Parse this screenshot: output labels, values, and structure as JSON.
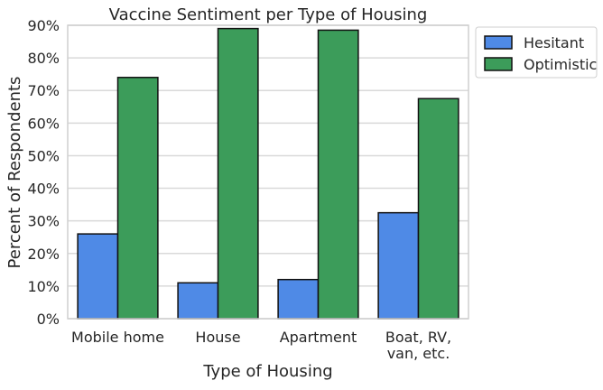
{
  "chart_data": {
    "type": "bar",
    "title": "Vaccine Sentiment per Type of Housing",
    "xlabel": "Type of Housing",
    "ylabel": "Percent of Respondents",
    "categories": [
      "Mobile home",
      "House",
      "Apartment",
      "Boat, RV, van, etc."
    ],
    "category_lines": [
      [
        "Mobile home"
      ],
      [
        "House"
      ],
      [
        "Apartment"
      ],
      [
        "Boat, RV,",
        "van, etc."
      ]
    ],
    "series": [
      {
        "name": "Hesitant",
        "color": "#4f8ae6",
        "values": [
          0.26,
          0.11,
          0.12,
          0.325
        ]
      },
      {
        "name": "Optimistic",
        "color": "#3c9c5a",
        "values": [
          0.74,
          0.89,
          0.885,
          0.675
        ]
      }
    ],
    "yticks": [
      0,
      0.1,
      0.2,
      0.3,
      0.4,
      0.5,
      0.6,
      0.7,
      0.8,
      0.9
    ],
    "ytick_labels": [
      "0%",
      "10%",
      "20%",
      "30%",
      "40%",
      "50%",
      "60%",
      "70%",
      "80%",
      "90%"
    ],
    "ylim": [
      0,
      0.9
    ],
    "grid": true,
    "legend_position": "outside-top-right"
  }
}
